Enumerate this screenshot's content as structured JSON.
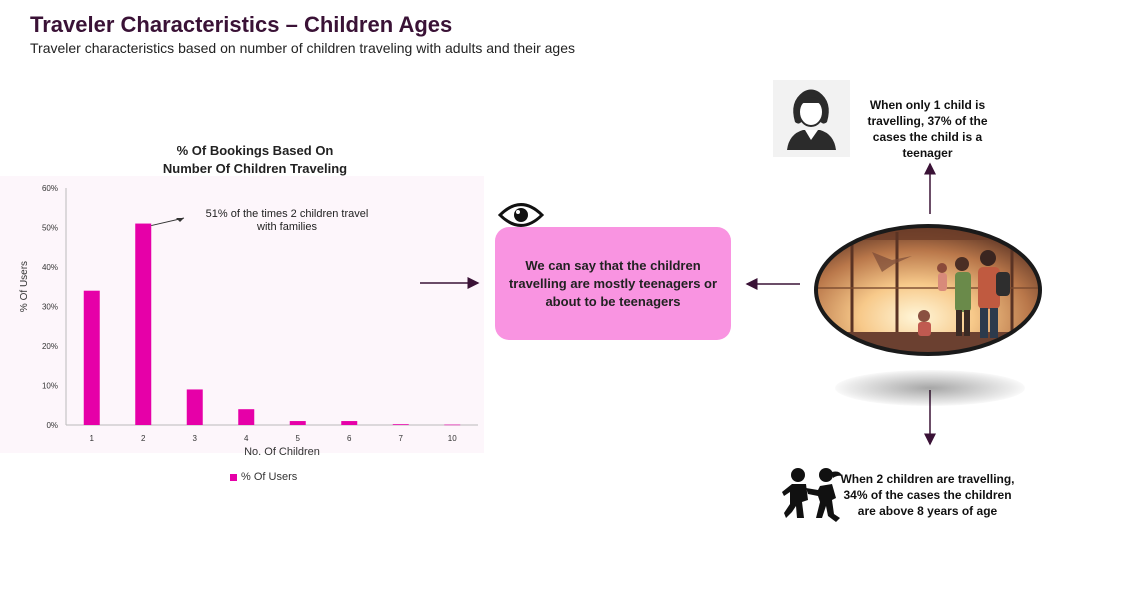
{
  "header": {
    "title": "Traveler Characteristics – Children Ages",
    "subtitle": "Traveler characteristics based on number of children traveling with adults and their ages"
  },
  "chart_data": {
    "type": "bar",
    "title": "% Of Bookings Based On Number Of Children Traveling",
    "title_lines": [
      "% Of Bookings Based On",
      "Number Of Children Traveling"
    ],
    "xlabel": "No. Of Children",
    "ylabel": "% Of Users",
    "categories": [
      "1",
      "2",
      "3",
      "4",
      "5",
      "6",
      "7",
      "10"
    ],
    "series": [
      {
        "name": "% Of Users",
        "values": [
          34,
          51,
          9,
          4,
          1,
          1,
          0.2,
          0.1
        ],
        "color": "#e600a8"
      }
    ],
    "ylim": [
      0,
      60
    ],
    "yticks": [
      "0%",
      "10%",
      "20%",
      "30%",
      "40%",
      "50%",
      "60%"
    ],
    "grid": false,
    "legend": "bottom",
    "annotation": {
      "text_lines": [
        "51% of the times 2 children travel",
        "with families"
      ],
      "target_category": "2"
    }
  },
  "callout": {
    "text": "We can say that the children travelling are mostly teenagers or about to be teenagers",
    "color": "#f994e1"
  },
  "facts": {
    "one_child": "When only 1 child is travelling, 37% of the cases the child is a teenager",
    "two_children": "When 2 children are travelling, 34% of the cases the children are above 8 years of age"
  },
  "icons": {
    "eye": "eye-icon",
    "teen": "teenager-icon",
    "kids": "children-playing-icon",
    "photo": "family-travel-photo"
  },
  "colors": {
    "title": "#3a1236",
    "bar": "#e600a8",
    "callout": "#f994e1",
    "arrow": "#3a1236"
  }
}
